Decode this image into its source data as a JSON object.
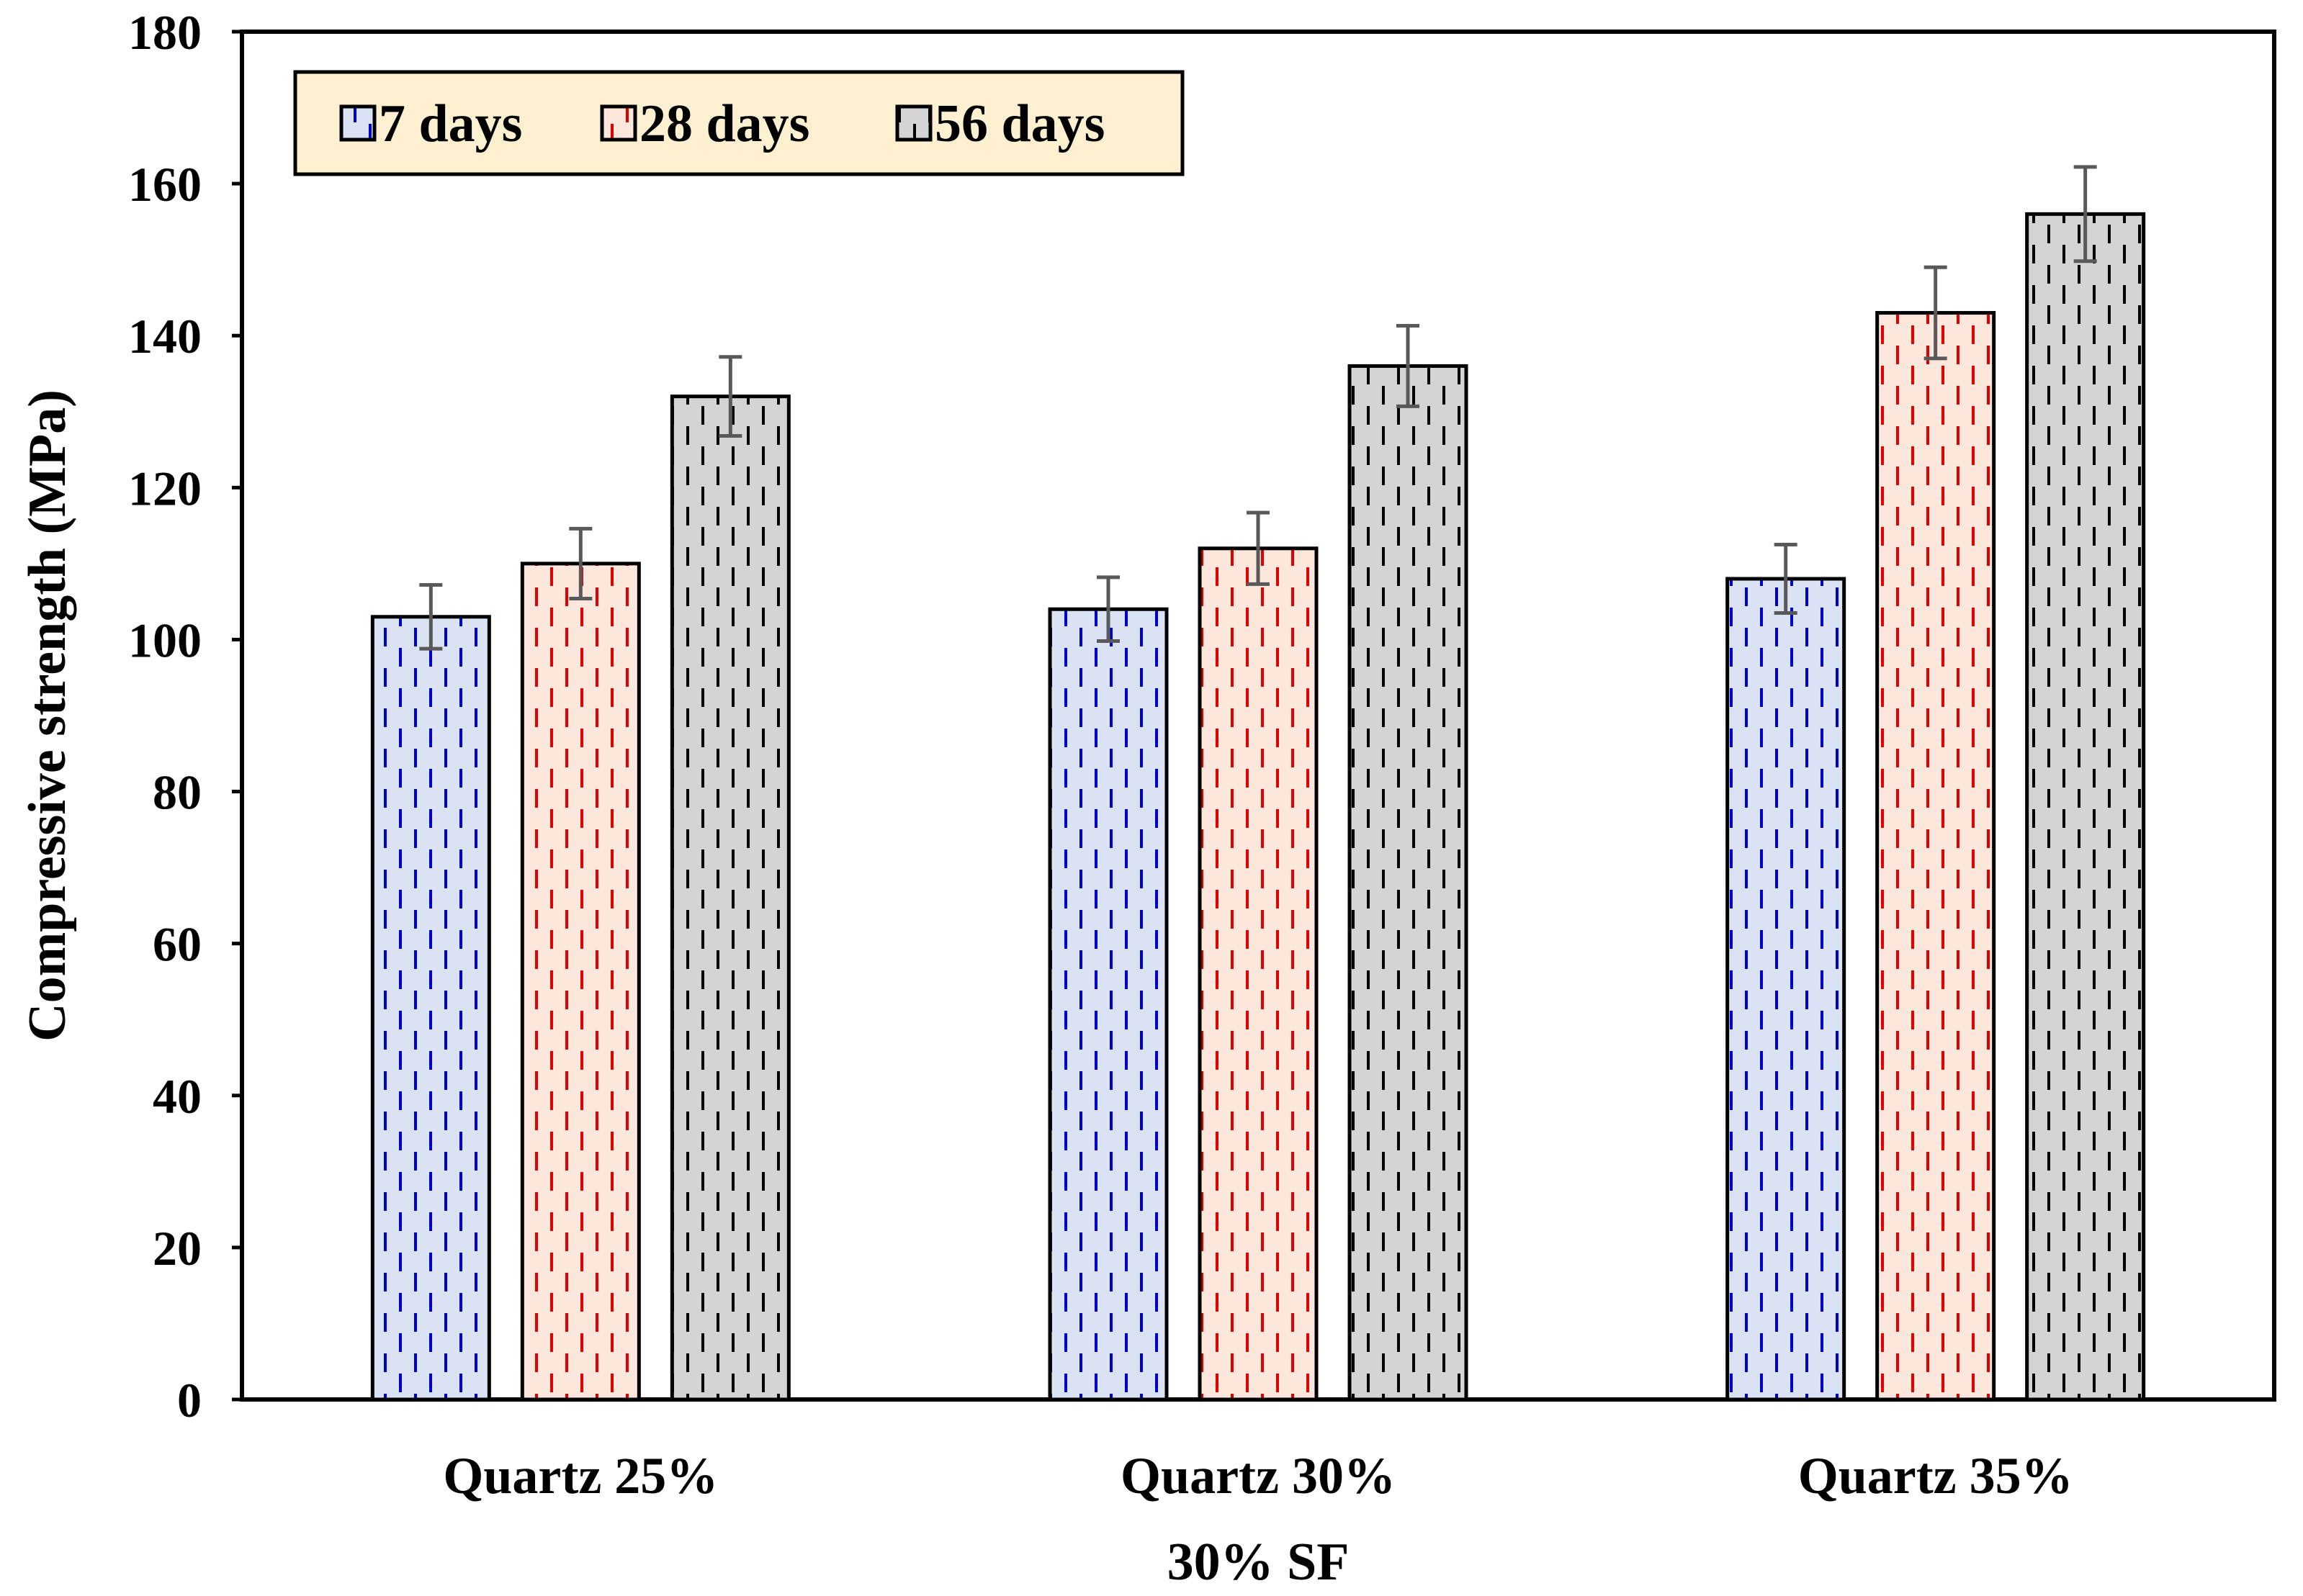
{
  "chart_data": {
    "type": "bar",
    "title": "",
    "xlabel": "30% SF",
    "ylabel": "Compressive strength (MPa)",
    "ylim": [
      0,
      180
    ],
    "yticks": [
      0,
      20,
      40,
      60,
      80,
      100,
      120,
      140,
      160,
      180
    ],
    "categories": [
      "Quartz 25%",
      "Quartz 30%",
      "Quartz 35%"
    ],
    "series": [
      {
        "name": "7 days",
        "values": [
          103,
          104,
          108
        ],
        "errors": [
          4.2,
          4.2,
          4.5
        ],
        "fill": "#dae3f3",
        "stroke": "#0000cc"
      },
      {
        "name": "28 days",
        "values": [
          110,
          112,
          143
        ],
        "errors": [
          4.6,
          4.7,
          6.0
        ],
        "fill": "#fde6dc",
        "stroke": "#e00000"
      },
      {
        "name": "56 days",
        "values": [
          132,
          136,
          156
        ],
        "errors": [
          5.2,
          5.3,
          6.2
        ],
        "fill": "#d4d4d4",
        "stroke": "#000000"
      }
    ],
    "legend": {
      "position": "top-left",
      "background": "#fdf0d0"
    },
    "grid": false,
    "error_bar_color": "#595959"
  }
}
